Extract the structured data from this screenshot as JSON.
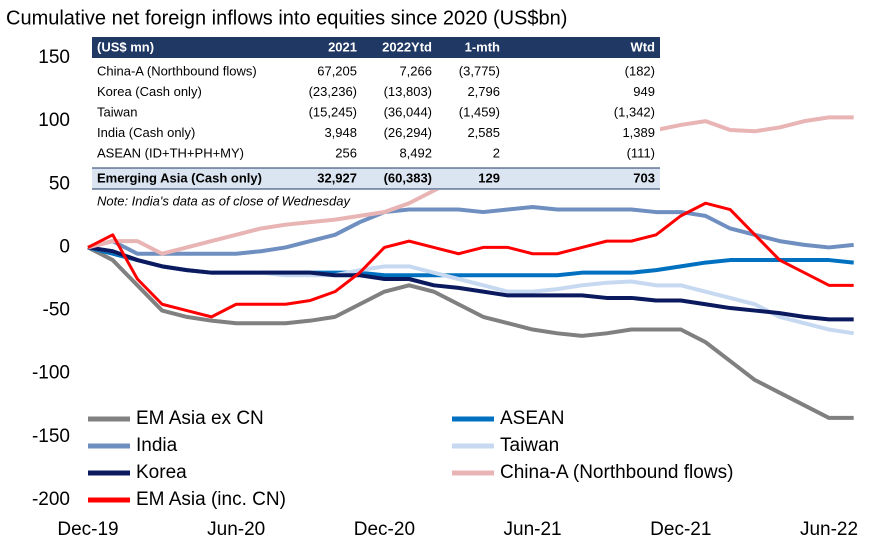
{
  "chart_data": {
    "type": "line",
    "title": "Cumulative net foreign inflows into equities since 2020 (US$bn)",
    "categories": [
      "Dec-19",
      null,
      null,
      null,
      null,
      null,
      "Jun-20",
      null,
      null,
      null,
      null,
      null,
      "Dec-20",
      null,
      null,
      null,
      null,
      null,
      "Jun-21",
      null,
      null,
      null,
      null,
      null,
      "Dec-21",
      null,
      null,
      null,
      null,
      null,
      "Jun-22",
      null
    ],
    "ylim": [
      -200,
      150
    ],
    "yticks": [
      -200,
      -150,
      -100,
      -50,
      0,
      50,
      100,
      150
    ],
    "grid": false,
    "legend": "bottom-left",
    "series": [
      {
        "name": "EM Asia ex CN",
        "color": "#808080",
        "values": [
          0,
          -10,
          -30,
          -50,
          -55,
          -58,
          -60,
          -60,
          -60,
          -58,
          -55,
          -45,
          -35,
          -30,
          -35,
          -45,
          -55,
          -60,
          -65,
          -68,
          -70,
          -68,
          -65,
          -65,
          -65,
          -75,
          -90,
          -105,
          -115,
          -125,
          -135,
          -135
        ]
      },
      {
        "name": "ASEAN",
        "color": "#0070c0",
        "values": [
          0,
          -5,
          -10,
          -15,
          -18,
          -20,
          -20,
          -20,
          -20,
          -20,
          -20,
          -20,
          -22,
          -22,
          -22,
          -22,
          -22,
          -22,
          -22,
          -22,
          -20,
          -20,
          -20,
          -18,
          -15,
          -12,
          -10,
          -10,
          -10,
          -10,
          -10,
          -12
        ]
      },
      {
        "name": "India",
        "color": "#6f8fc0",
        "values": [
          0,
          5,
          -5,
          -5,
          -5,
          -5,
          -5,
          -3,
          0,
          5,
          10,
          20,
          28,
          30,
          30,
          30,
          28,
          30,
          32,
          30,
          30,
          30,
          30,
          28,
          28,
          25,
          15,
          10,
          5,
          2,
          0,
          2
        ]
      },
      {
        "name": "Taiwan",
        "color": "#c6d9f1",
        "values": [
          0,
          -3,
          -10,
          -15,
          -18,
          -20,
          -20,
          -20,
          -22,
          -22,
          -22,
          -18,
          -15,
          -15,
          -20,
          -25,
          -30,
          -35,
          -35,
          -33,
          -30,
          -28,
          -27,
          -30,
          -30,
          -35,
          -40,
          -45,
          -55,
          -60,
          -65,
          -68
        ]
      },
      {
        "name": "Korea",
        "color": "#0b1a5e",
        "values": [
          0,
          -3,
          -10,
          -15,
          -18,
          -20,
          -20,
          -20,
          -20,
          -20,
          -22,
          -22,
          -25,
          -25,
          -30,
          -32,
          -35,
          -38,
          -38,
          -38,
          -38,
          -40,
          -40,
          -42,
          -42,
          -45,
          -48,
          -50,
          -52,
          -55,
          -57,
          -57
        ]
      },
      {
        "name": "China-A (Northbound flows)",
        "color": "#e8b4b4",
        "values": [
          0,
          5,
          5,
          -5,
          0,
          5,
          10,
          15,
          18,
          20,
          22,
          25,
          28,
          35,
          45,
          55,
          62,
          68,
          72,
          76,
          80,
          85,
          90,
          93,
          97,
          100,
          93,
          92,
          95,
          100,
          103,
          103
        ]
      },
      {
        "name": "EM Asia (inc. CN)",
        "color": "#ff0000",
        "values": [
          0,
          10,
          -25,
          -45,
          -50,
          -55,
          -45,
          -45,
          -45,
          -42,
          -35,
          -20,
          0,
          5,
          0,
          -5,
          0,
          0,
          -5,
          -5,
          0,
          5,
          5,
          10,
          25,
          35,
          30,
          10,
          -10,
          -20,
          -30,
          -30
        ]
      }
    ]
  },
  "table": {
    "header": [
      "(US$ mn)",
      "2021",
      "2022Ytd",
      "1-mth",
      "Wtd"
    ],
    "rows": [
      [
        "China-A (Northbound flows)",
        "67,205",
        "7,266",
        "(3,775)",
        "(182)"
      ],
      [
        "Korea (Cash only)",
        "(23,236)",
        "(13,803)",
        "2,796",
        "949"
      ],
      [
        "Taiwan",
        "(15,245)",
        "(36,044)",
        "(1,459)",
        "(1,342)"
      ],
      [
        "India (Cash only)",
        "3,948",
        "(26,294)",
        "2,585",
        "1,389"
      ],
      [
        "ASEAN (ID+TH+PH+MY)",
        "256",
        "8,492",
        "2",
        "(111)"
      ],
      [
        "Emerging Asia (Cash only)",
        "32,927",
        "(60,383)",
        "129",
        "703"
      ]
    ],
    "note": "Note: India's data as of close of Wednesday"
  }
}
